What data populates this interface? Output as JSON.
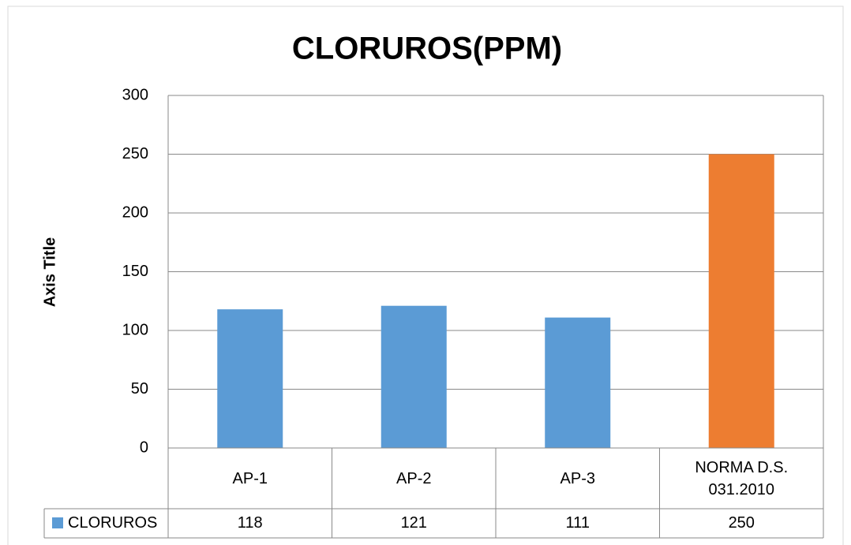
{
  "chart_data": {
    "type": "bar",
    "title": "CLORUROS(PPM)",
    "y_label": "Axis Title",
    "categories": [
      "AP-1",
      "AP-2",
      "AP-3",
      "NORMA D.S. 031.2010"
    ],
    "series": [
      {
        "name": "CLORUROS",
        "color": "#5b9bd5",
        "point_colors": [
          "#5b9bd5",
          "#5b9bd5",
          "#5b9bd5",
          "#ed7d31"
        ],
        "values": [
          118,
          121,
          111,
          250
        ]
      }
    ],
    "ylim": [
      0,
      300
    ],
    "yticks": [
      0,
      50,
      100,
      150,
      200,
      250,
      300
    ],
    "grid": true,
    "data_table": true
  }
}
